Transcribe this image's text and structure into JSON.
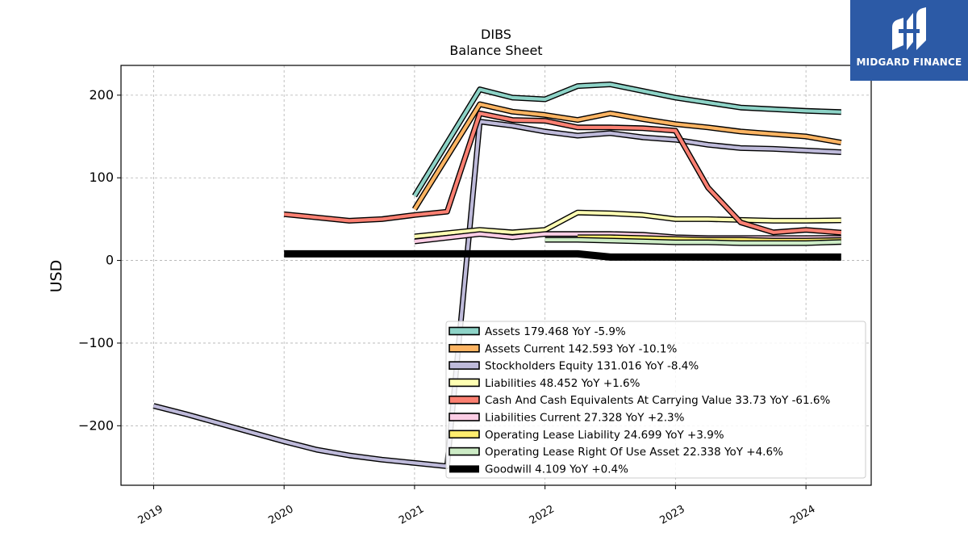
{
  "logo": {
    "text": "MIDGARD FINANCE",
    "color": "#2c5aa6"
  },
  "chart_data": {
    "type": "line",
    "title": "DIBS",
    "subtitle": "Balance  Sheet",
    "ylabel": "USD",
    "xlabel": "",
    "xlim": [
      2018.75,
      2024.5
    ],
    "ylim": [
      -272,
      236
    ],
    "yticks": [
      200,
      100,
      0,
      -100,
      -200
    ],
    "ytick_labels": [
      "200",
      "100",
      "0",
      "−100",
      "−200"
    ],
    "xticks": [
      2019,
      2020,
      2021,
      2022,
      2023,
      2024
    ],
    "xtick_labels": [
      "2019",
      "2020",
      "2021",
      "2022",
      "2023",
      "2024"
    ],
    "grid": true,
    "legend_position": "lower-right",
    "series": [
      {
        "name": "Assets",
        "legend": "Assets  179.468 YoY -5.9%",
        "color": "#8dd3c7",
        "x": [
          2021.0,
          2021.5,
          2021.75,
          2022.0,
          2022.25,
          2022.5,
          2022.75,
          2023.0,
          2023.25,
          2023.5,
          2023.75,
          2024.0,
          2024.27
        ],
        "y": [
          78,
          207,
          197,
          195,
          211,
          213,
          205,
          197,
          191,
          185,
          183,
          181,
          179.5
        ]
      },
      {
        "name": "Assets Current",
        "legend": "Assets Current  142.593 YoY -10.1%",
        "color": "#fdb462",
        "x": [
          2021.0,
          2021.5,
          2021.75,
          2022.0,
          2022.25,
          2022.5,
          2022.75,
          2023.0,
          2023.25,
          2023.5,
          2023.75,
          2024.0,
          2024.27
        ],
        "y": [
          62,
          189,
          180,
          176,
          170,
          178,
          171,
          165,
          161,
          156,
          153,
          150,
          142.6
        ]
      },
      {
        "name": "Stockholders Equity",
        "legend": "Stockholders Equity  131.016 YoY -8.4%",
        "color": "#bebada",
        "x": [
          2019.0,
          2019.25,
          2019.5,
          2019.75,
          2020.0,
          2020.25,
          2020.5,
          2020.75,
          2021.0,
          2021.25,
          2021.5,
          2021.75,
          2022.0,
          2022.25,
          2022.5,
          2022.75,
          2023.0,
          2023.25,
          2023.5,
          2023.75,
          2024.0,
          2024.27
        ],
        "y": [
          -176,
          -186,
          -197,
          -208,
          -219,
          -229,
          -236,
          -241,
          -245,
          -249,
          168,
          163,
          156,
          151,
          154,
          149,
          146,
          140,
          136,
          135,
          133,
          131
        ]
      },
      {
        "name": "Liabilities",
        "legend": "Liabilities  48.452 YoY +1.6%",
        "color": "#ffffb3",
        "x": [
          2021.0,
          2021.5,
          2021.75,
          2022.0,
          2022.25,
          2022.5,
          2022.75,
          2023.0,
          2023.25,
          2023.5,
          2023.75,
          2024.0,
          2024.27
        ],
        "y": [
          29,
          37,
          34,
          37,
          58,
          57,
          55,
          50,
          50,
          49,
          48,
          48,
          48.5
        ]
      },
      {
        "name": "Cash And Cash Equivalents At Carrying Value",
        "legend": "Cash And Cash Equivalents At Carrying Value  33.73 YoY -61.6%",
        "color": "#fb8072",
        "x": [
          2020.0,
          2020.25,
          2020.5,
          2020.75,
          2021.0,
          2021.25,
          2021.5,
          2021.75,
          2022.0,
          2022.25,
          2022.5,
          2022.75,
          2023.0,
          2023.25,
          2023.5,
          2023.75,
          2024.0,
          2024.27
        ],
        "y": [
          56,
          52,
          48,
          50,
          55,
          59,
          178,
          170,
          169,
          161,
          161,
          160,
          157,
          88,
          46,
          34,
          37,
          33.7
        ]
      },
      {
        "name": "Liabilities Current",
        "legend": "Liabilities Current  27.328 YoY +2.3%",
        "color": "#fccde5",
        "x": [
          2021.0,
          2021.5,
          2021.75,
          2022.0,
          2022.25,
          2022.5,
          2022.75,
          2023.0,
          2023.25,
          2023.5,
          2023.75,
          2024.0,
          2024.27
        ],
        "y": [
          23,
          32,
          28,
          32,
          32,
          32,
          31,
          28,
          27,
          27,
          27,
          27,
          27.3
        ]
      },
      {
        "name": "Operating Lease Liability",
        "legend": "Operating Lease Liability  24.699 YoY +3.9%",
        "color": "#ffed6f",
        "x": [
          2022.25,
          2022.5,
          2022.75,
          2023.0,
          2023.25,
          2023.5,
          2023.75,
          2024.0,
          2024.27
        ],
        "y": [
          28,
          28,
          27,
          26,
          25,
          25,
          24,
          24,
          24.7
        ]
      },
      {
        "name": "Operating Lease Right Of Use Asset",
        "legend": "Operating Lease Right Of Use Asset  22.338 YoY +4.6%",
        "color": "#ccebc5",
        "x": [
          2022.0,
          2022.25,
          2022.5,
          2022.75,
          2023.0,
          2023.25,
          2023.5,
          2023.75,
          2024.0,
          2024.27
        ],
        "y": [
          25,
          25,
          24,
          23,
          22,
          22,
          21,
          21,
          21,
          22.3
        ]
      },
      {
        "name": "Goodwill",
        "legend": "Goodwill  4.109 YoY +0.4%",
        "color": "#000000",
        "x": [
          2020.0,
          2020.25,
          2020.5,
          2020.75,
          2021.0,
          2021.25,
          2021.5,
          2021.75,
          2022.0,
          2022.25,
          2022.5,
          2022.75,
          2023.0,
          2023.25,
          2023.5,
          2023.75,
          2024.0,
          2024.27
        ],
        "y": [
          8,
          8,
          8,
          8,
          8,
          8,
          8,
          8,
          8,
          8,
          4.1,
          4.1,
          4.1,
          4.1,
          4.1,
          4.1,
          4.1,
          4.1
        ]
      }
    ]
  }
}
